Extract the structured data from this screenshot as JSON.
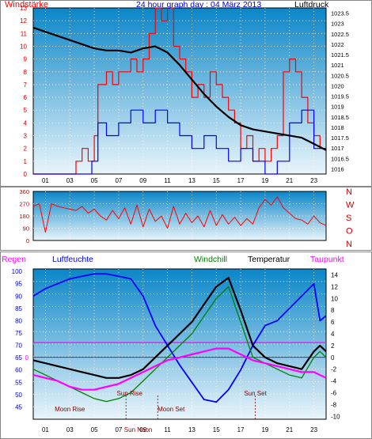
{
  "colors": {
    "wind_gust": "#ff0000",
    "wind_avg": "#0000ff",
    "pressure": "#000000",
    "direction": "#ff0000",
    "humidity": "#0000ff",
    "windchill": "#008000",
    "temperature": "#000000",
    "dewpoint": "#ff00ff",
    "rain": "#ff00ff",
    "zero_line": "#ff00ff",
    "sky_top": "#0a86c8",
    "sky_bottom": "#e9f4fb"
  },
  "chart_data": [
    {
      "type": "line",
      "title": "24 hour graph day : 04 März 2013",
      "left_label": "Windstärke",
      "right_label": "Luftdruck",
      "x_ticks": [
        "01",
        "03",
        "05",
        "07",
        "09",
        "11",
        "13",
        "15",
        "17",
        "19",
        "21",
        "23"
      ],
      "y_left_ticks": [
        "13",
        "12",
        "11",
        "10",
        "9",
        "8",
        "7",
        "6",
        "5",
        "4",
        "3",
        "2",
        "1",
        "0"
      ],
      "y_left_range": [
        0,
        13
      ],
      "y_right_ticks": [
        "1023.5",
        "1023",
        "1022.5",
        "1022",
        "1021.5",
        "1021",
        "1020.5",
        "1020",
        "1019.5",
        "1019",
        "1018.5",
        "1018",
        "1017.5",
        "1017",
        "1016.5",
        "1016"
      ],
      "y_right_range": [
        1015.75,
        1023.75
      ],
      "grid": true,
      "series": [
        {
          "name": "Windstärke (Böen)",
          "axis": "left",
          "x": [
            0,
            3.5,
            3.5,
            4,
            4,
            4.5,
            4.5,
            5,
            5,
            5.3,
            5.3,
            6,
            6,
            6.5,
            6.5,
            7,
            7,
            8,
            8,
            8.5,
            8.5,
            9,
            9,
            9.5,
            9.5,
            10,
            10,
            10.5,
            10.5,
            11,
            11,
            11.5,
            11.5,
            12,
            12,
            12.5,
            12.5,
            13,
            13,
            13.5,
            13.5,
            14,
            14,
            14.5,
            14.5,
            15,
            15,
            15.5,
            15.5,
            16,
            16,
            16.5,
            16.5,
            17,
            17,
            17.5,
            17.5,
            18,
            18,
            18.5,
            18.5,
            19,
            19,
            19.5,
            19.5,
            20,
            20,
            20.5,
            20.5,
            21,
            21,
            21.5,
            21.5,
            22,
            22,
            22.5,
            22.5,
            23,
            23,
            23.5,
            23.5,
            24
          ],
          "y": [
            0,
            0,
            1,
            1,
            2,
            2,
            1,
            1,
            3,
            3,
            7,
            7,
            8,
            8,
            7,
            7,
            8,
            8,
            9,
            9,
            8,
            8,
            9,
            9,
            11,
            11,
            13,
            13,
            12,
            12,
            13,
            13,
            10,
            10,
            9,
            9,
            8,
            8,
            6,
            6,
            7,
            7,
            6,
            6,
            8,
            8,
            7,
            7,
            6,
            6,
            5,
            5,
            4,
            4,
            2,
            2,
            3,
            3,
            1,
            1,
            2,
            2,
            1,
            1,
            2,
            2,
            3,
            3,
            8,
            8,
            9,
            9,
            8,
            8,
            6,
            6,
            4,
            4,
            3,
            3,
            2,
            2
          ]
        },
        {
          "name": "Windstärke (Mittel)",
          "axis": "left",
          "x": [
            0,
            4.8,
            4.8,
            5.3,
            5.3,
            6,
            6,
            7,
            7,
            8,
            8,
            9,
            9,
            10,
            10,
            11,
            11,
            12,
            12,
            13,
            13,
            14,
            14,
            15,
            15,
            16,
            16,
            17,
            17,
            18,
            18,
            19,
            19,
            20,
            20,
            21,
            21,
            22,
            22,
            23,
            23,
            24
          ],
          "y": [
            0,
            0,
            1,
            1,
            4,
            4,
            3,
            3,
            4,
            4,
            5,
            5,
            4,
            4,
            5,
            5,
            4,
            4,
            3,
            3,
            2,
            2,
            3,
            3,
            2,
            2,
            1,
            1,
            2,
            2,
            1,
            1,
            0,
            0,
            1,
            1,
            4,
            4,
            5,
            5,
            2,
            2
          ]
        },
        {
          "name": "Luftdruck",
          "axis": "right",
          "x": [
            0,
            1,
            2,
            3,
            4,
            5,
            6,
            7,
            8,
            9,
            10,
            11,
            12,
            13,
            14,
            15,
            16,
            17,
            18,
            19,
            20,
            21,
            22,
            23,
            24
          ],
          "y": [
            1022.8,
            1022.6,
            1022.4,
            1022.2,
            1022.0,
            1021.8,
            1021.7,
            1021.7,
            1021.6,
            1021.8,
            1021.9,
            1021.6,
            1021.0,
            1020.3,
            1019.6,
            1019.0,
            1018.5,
            1018.1,
            1017.9,
            1017.8,
            1017.7,
            1017.6,
            1017.5,
            1017.2,
            1016.9
          ]
        }
      ]
    },
    {
      "type": "line",
      "title": "",
      "y_ticks": [
        "360",
        "270",
        "180",
        "90",
        "0"
      ],
      "y_range": [
        0,
        360
      ],
      "compass_labels": [
        "N",
        "W",
        "S",
        "O",
        "N"
      ],
      "grid": true,
      "series": [
        {
          "name": "Windrichtung",
          "x": [
            0,
            0.5,
            1,
            1.5,
            2,
            2.5,
            3,
            3.5,
            4,
            4.5,
            5,
            5.5,
            6,
            6.5,
            7,
            7.5,
            8,
            8.5,
            9,
            9.5,
            10,
            10.5,
            11,
            11.5,
            12,
            12.5,
            13,
            13.5,
            14,
            14.5,
            15,
            15.5,
            16,
            16.5,
            17,
            17.5,
            18,
            18.5,
            19,
            19.5,
            20,
            20.5,
            21,
            21.5,
            22,
            22.5,
            23,
            23.5,
            24
          ],
          "y": [
            250,
            270,
            60,
            270,
            250,
            240,
            230,
            220,
            250,
            200,
            230,
            180,
            150,
            220,
            160,
            240,
            120,
            260,
            100,
            230,
            140,
            180,
            90,
            250,
            120,
            200,
            130,
            180,
            100,
            220,
            110,
            190,
            120,
            170,
            110,
            160,
            120,
            240,
            300,
            260,
            320,
            240,
            200,
            160,
            150,
            120,
            180,
            130,
            110
          ]
        }
      ]
    },
    {
      "type": "line",
      "title": "",
      "labels": [
        "Regen",
        "Luftfeuchte",
        "Windchill",
        "Temperatur",
        "Taupunkt"
      ],
      "x_ticks": [
        "01",
        "03",
        "05",
        "07",
        "09",
        "11",
        "13",
        "15",
        "17",
        "19",
        "21",
        "23"
      ],
      "y_left_ticks": [
        "100",
        "95",
        "90",
        "85",
        "80",
        "75",
        "70",
        "65",
        "60",
        "55",
        "50",
        "45"
      ],
      "y_left_range": [
        40,
        101
      ],
      "y_right_ticks": [
        "14",
        "12",
        "10",
        "8",
        "6",
        "4",
        "2",
        "0",
        "-2",
        "-4",
        "-6",
        "-8",
        "-10"
      ],
      "y_right_range": [
        -10.5,
        15
      ],
      "rain_axis_tick": "0",
      "annotations": [
        "Moon Rise",
        "Sun Rise",
        "Sun Noon",
        "Moon Set",
        "Sun Set"
      ],
      "grid": true,
      "series": [
        {
          "name": "Luftfeuchte",
          "axis": "left",
          "x": [
            0,
            1,
            2,
            3,
            4,
            5,
            6,
            7,
            8,
            9,
            10,
            11,
            12,
            13,
            14,
            15,
            16,
            17,
            18,
            19,
            20,
            21,
            22,
            23,
            23.5,
            24
          ],
          "y": [
            90,
            93,
            95,
            97,
            98,
            99,
            99,
            98,
            97,
            90,
            78,
            70,
            62,
            55,
            48,
            47,
            52,
            60,
            70,
            78,
            80,
            85,
            90,
            95,
            80,
            82
          ]
        },
        {
          "name": "Temperatur",
          "axis": "right",
          "x": [
            0,
            1,
            2,
            3,
            4,
            5,
            6,
            7,
            8,
            9,
            10,
            11,
            12,
            13,
            14,
            15,
            16,
            17,
            18,
            19,
            20,
            21,
            22,
            23,
            23.5,
            24
          ],
          "y": [
            -0.5,
            -1,
            -1.5,
            -2,
            -2.5,
            -3,
            -3.5,
            -3.5,
            -3,
            -2,
            0,
            2,
            4,
            6,
            9,
            12,
            13.5,
            8,
            2,
            0,
            -1,
            -1.5,
            -2,
            1,
            2,
            1
          ]
        },
        {
          "name": "Windchill",
          "axis": "right",
          "x": [
            0,
            1,
            2,
            3,
            4,
            5,
            6,
            7,
            8,
            9,
            10,
            11,
            12,
            13,
            14,
            15,
            16,
            17,
            18,
            19,
            20,
            21,
            22,
            23,
            23.5,
            24
          ],
          "y": [
            -2,
            -3,
            -4,
            -5,
            -6,
            -7,
            -7.5,
            -7,
            -6,
            -4,
            -2,
            0,
            2,
            4,
            7,
            10,
            12,
            6,
            0,
            -1,
            -2,
            -3,
            -3.5,
            0,
            1,
            0
          ]
        },
        {
          "name": "Taupunkt",
          "axis": "right",
          "x": [
            0,
            1,
            2,
            3,
            4,
            5,
            6,
            7,
            8,
            9,
            10,
            11,
            12,
            13,
            14,
            15,
            16,
            17,
            18,
            19,
            20,
            21,
            22,
            23,
            23.5,
            24
          ],
          "y": [
            -3,
            -3.5,
            -4,
            -5,
            -5.5,
            -5.5,
            -5,
            -4.5,
            -3.5,
            -2.5,
            -1.5,
            -0.5,
            0,
            0.5,
            1,
            1.5,
            1.5,
            0.5,
            -0.5,
            -1,
            -1.5,
            -2,
            -2.5,
            -2.5,
            -3,
            -3.5
          ]
        },
        {
          "name": "Regen",
          "axis": "right",
          "x": [
            0,
            24
          ],
          "y": [
            2.5,
            2.5
          ]
        }
      ]
    }
  ]
}
